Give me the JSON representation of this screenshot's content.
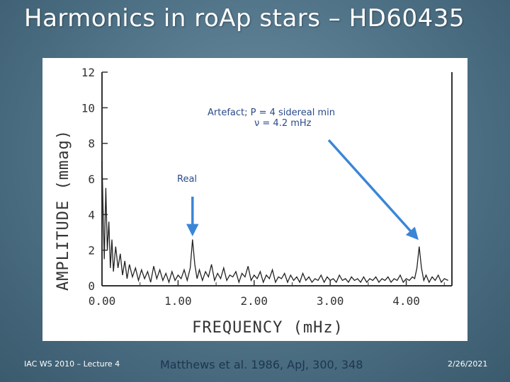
{
  "slide": {
    "title": "Harmonics in roAp stars – HD60435",
    "footer_left": "IAC WS 2010 – Lecture 4",
    "footer_center": "Matthews et al. 1986, ApJ, 300, 348",
    "footer_right": "2/26/2021"
  },
  "annotations": {
    "artefact_line1": "Artefact; P = 4 sidereal min",
    "artefact_line2": "ν = 4.2 mHz",
    "real": "Real"
  },
  "colors": {
    "arrow": "#3a86d6",
    "annotation_text": "#2a4a8a",
    "trace": "#222222"
  },
  "chart_data": {
    "type": "line",
    "xlabel": "FREQUENCY (mHz)",
    "ylabel": "AMPLITUDE (mmag)",
    "xlim": [
      0,
      4.6
    ],
    "ylim": [
      0,
      12
    ],
    "xticks": [
      "0.00",
      "1.00",
      "2.00",
      "3.00",
      "4.00"
    ],
    "yticks": [
      "0",
      "2",
      "4",
      "6",
      "8",
      "10",
      "12"
    ],
    "series": [
      {
        "x": [
          0.0,
          0.03,
          0.05,
          0.07,
          0.09,
          0.11,
          0.13,
          0.15,
          0.18,
          0.21,
          0.24,
          0.27,
          0.3,
          0.33,
          0.36,
          0.4,
          0.44,
          0.48,
          0.52,
          0.56,
          0.6,
          0.64,
          0.68,
          0.72,
          0.76,
          0.8,
          0.84,
          0.88,
          0.92,
          0.96,
          1.0,
          1.04,
          1.08,
          1.12,
          1.16,
          1.19,
          1.22,
          1.25,
          1.28,
          1.32,
          1.36,
          1.4,
          1.44,
          1.48,
          1.52,
          1.56,
          1.6,
          1.64,
          1.68,
          1.72,
          1.76,
          1.8,
          1.84,
          1.88,
          1.92,
          1.96,
          2.0,
          2.04,
          2.08,
          2.12,
          2.16,
          2.2,
          2.24,
          2.28,
          2.32,
          2.36,
          2.4,
          2.44,
          2.48,
          2.52,
          2.56,
          2.6,
          2.64,
          2.68,
          2.72,
          2.76,
          2.8,
          2.84,
          2.88,
          2.92,
          2.96,
          3.0,
          3.04,
          3.08,
          3.12,
          3.16,
          3.2,
          3.24,
          3.28,
          3.32,
          3.36,
          3.4,
          3.44,
          3.48,
          3.52,
          3.56,
          3.6,
          3.64,
          3.68,
          3.72,
          3.76,
          3.8,
          3.84,
          3.88,
          3.92,
          3.96,
          4.0,
          4.04,
          4.08,
          4.11,
          4.14,
          4.17,
          4.2,
          4.23,
          4.26,
          4.3,
          4.34,
          4.38,
          4.42,
          4.46,
          4.5,
          4.55
        ],
        "y": [
          7.0,
          1.5,
          5.5,
          2.0,
          3.6,
          1.0,
          2.6,
          0.8,
          2.2,
          1.0,
          1.8,
          0.6,
          1.4,
          0.4,
          1.2,
          0.5,
          1.0,
          0.3,
          0.9,
          0.4,
          0.8,
          0.2,
          1.1,
          0.4,
          0.9,
          0.3,
          0.7,
          0.2,
          0.8,
          0.3,
          0.6,
          0.4,
          0.9,
          0.3,
          1.0,
          2.6,
          1.2,
          0.4,
          0.9,
          0.3,
          0.8,
          0.5,
          1.2,
          0.3,
          0.7,
          0.4,
          1.0,
          0.3,
          0.6,
          0.5,
          0.8,
          0.2,
          0.7,
          0.5,
          1.1,
          0.3,
          0.6,
          0.4,
          0.8,
          0.2,
          0.6,
          0.4,
          0.9,
          0.2,
          0.5,
          0.4,
          0.7,
          0.2,
          0.6,
          0.3,
          0.5,
          0.2,
          0.7,
          0.3,
          0.5,
          0.2,
          0.4,
          0.3,
          0.6,
          0.2,
          0.5,
          0.3,
          0.4,
          0.2,
          0.6,
          0.3,
          0.4,
          0.2,
          0.5,
          0.3,
          0.4,
          0.2,
          0.5,
          0.2,
          0.4,
          0.3,
          0.5,
          0.2,
          0.4,
          0.3,
          0.5,
          0.2,
          0.4,
          0.3,
          0.6,
          0.2,
          0.4,
          0.3,
          0.5,
          0.4,
          1.0,
          2.2,
          1.0,
          0.3,
          0.6,
          0.2,
          0.5,
          0.3,
          0.6,
          0.2,
          0.4,
          0.3
        ]
      }
    ],
    "grid": false
  }
}
